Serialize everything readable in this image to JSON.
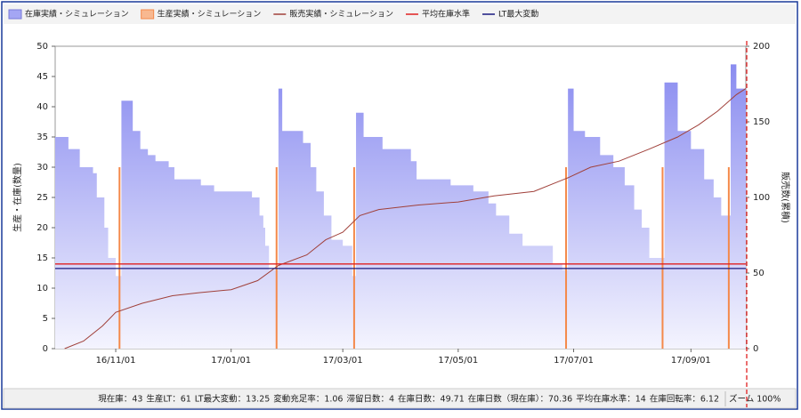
{
  "chart_data": {
    "type": "combo",
    "y_label": "生産・在庫(数量)",
    "y2_label": "販売数(累積)",
    "xlim": [
      "16/09/30",
      "17/09/30"
    ],
    "xticks": [
      "16/11/01",
      "17/01/01",
      "17/03/01",
      "17/05/01",
      "17/07/01",
      "17/09/01"
    ],
    "ylim": [
      0,
      50
    ],
    "yticks": [
      0,
      5,
      10,
      15,
      20,
      25,
      30,
      35,
      40,
      45,
      50
    ],
    "y2lim": [
      0,
      200
    ],
    "y2ticks": [
      0,
      50,
      100,
      150,
      200
    ],
    "series": [
      {
        "name": "在庫実績・シミュレーション",
        "type": "step-area",
        "color": "#8a8cf0",
        "x": [
          "16/09/30",
          "16/10/07",
          "16/10/13",
          "16/10/20",
          "16/10/22",
          "16/10/26",
          "16/10/28",
          "16/11/01",
          "16/11/04",
          "16/11/10",
          "16/11/14",
          "16/11/18",
          "16/11/22",
          "16/11/29",
          "16/12/02",
          "16/12/16",
          "16/12/23",
          "17/01/12",
          "17/01/16",
          "17/01/18",
          "17/01/19",
          "17/01/21",
          "17/01/26",
          "17/01/28",
          "17/02/08",
          "17/02/12",
          "17/02/15",
          "17/02/19",
          "17/02/23",
          "17/03/01",
          "17/03/06",
          "17/03/08",
          "17/03/12",
          "17/03/22",
          "17/04/06",
          "17/04/09",
          "17/04/27",
          "17/05/09",
          "17/05/17",
          "17/05/21",
          "17/05/28",
          "17/06/04",
          "17/06/20",
          "17/06/25",
          "17/06/28",
          "17/07/01",
          "17/07/07",
          "17/07/15",
          "17/07/22",
          "17/07/28",
          "17/08/02",
          "17/08/06",
          "17/08/10",
          "17/08/18",
          "17/08/25",
          "17/09/01",
          "17/09/08",
          "17/09/13",
          "17/09/17",
          "17/09/22",
          "17/09/25"
        ],
        "values": [
          35,
          33,
          30,
          29,
          25,
          20,
          15,
          12,
          41,
          36,
          33,
          32,
          31,
          30,
          28,
          27,
          26,
          25,
          22,
          20,
          17,
          13,
          43,
          36,
          34,
          30,
          26,
          22,
          18,
          17,
          12,
          39,
          35,
          33,
          31,
          28,
          27,
          26,
          24,
          22,
          19,
          17,
          14,
          13,
          43,
          36,
          35,
          32,
          30,
          27,
          23,
          20,
          15,
          44,
          36,
          33,
          28,
          25,
          22,
          47,
          43
        ]
      },
      {
        "name": "生産実績・シミュレーション",
        "type": "spike",
        "color": "#f4894a",
        "axis": "y",
        "x": [
          "16/11/03",
          "17/01/25",
          "17/03/07",
          "17/06/27",
          "17/08/17",
          "17/09/21"
        ],
        "values": [
          30,
          30,
          30,
          30,
          30,
          30
        ]
      },
      {
        "name": "販売実績・シミュレーション",
        "type": "line",
        "color": "#a0403a",
        "axis": "y2",
        "x": [
          "16/10/05",
          "16/10/15",
          "16/10/25",
          "16/11/01",
          "16/11/15",
          "16/12/01",
          "16/12/15",
          "17/01/01",
          "17/01/15",
          "17/01/26",
          "17/02/10",
          "17/02/20",
          "17/03/01",
          "17/03/10",
          "17/03/20",
          "17/04/10",
          "17/05/01",
          "17/05/20",
          "17/06/10",
          "17/06/28",
          "17/07/10",
          "17/07/25",
          "17/08/10",
          "17/08/25",
          "17/09/05",
          "17/09/15",
          "17/09/25",
          "17/09/30"
        ],
        "values": [
          0,
          5,
          15,
          24,
          30,
          35,
          37,
          39,
          45,
          55,
          62,
          72,
          77,
          88,
          92,
          95,
          97,
          101,
          104,
          113,
          120,
          124,
          132,
          140,
          148,
          157,
          168,
          172
        ]
      },
      {
        "name": "平均在庫水準",
        "type": "hline",
        "color": "#e02020",
        "value": 14
      },
      {
        "name": "LT最大変動",
        "type": "hline",
        "color": "#1a1a80",
        "value": 13.25
      }
    ]
  },
  "status": {
    "items": [
      {
        "label": "現在庫：",
        "value": 43
      },
      {
        "label": "生産LT：",
        "value": 61
      },
      {
        "label": "LT最大変動：",
        "value": 13.25
      },
      {
        "label": "変動充足率：",
        "value": 1.06
      },
      {
        "label": "滞留日数：",
        "value": 4
      },
      {
        "label": "在庫日数：",
        "value": 49.71
      },
      {
        "label": "在庫日数（現在庫）：",
        "value": 70.36
      },
      {
        "label": "平均在庫水準：",
        "value": 14
      },
      {
        "label": "在庫回転率：",
        "value": 6.12
      }
    ],
    "zoom_label": "ズーム",
    "zoom": "100%"
  }
}
